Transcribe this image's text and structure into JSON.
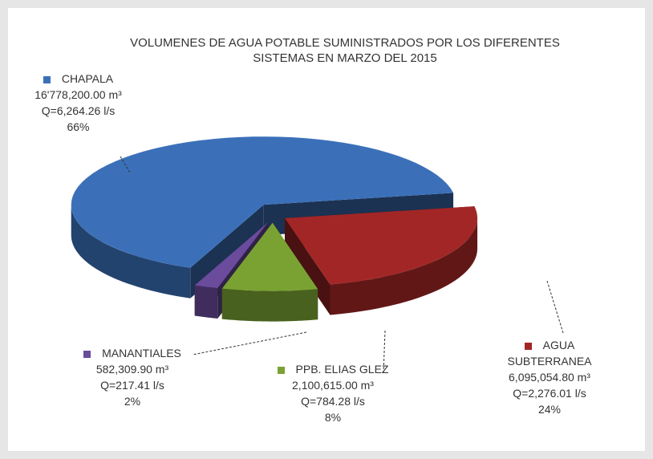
{
  "chart_data": {
    "type": "pie",
    "title": "VOLUMENES DE AGUA POTABLE SUMINISTRADOS POR LOS DIFERENTES SISTEMAS EN MARZO DEL 2015",
    "categories": [
      "AGUA SUBTERRANEA",
      "PPB. ELIAS GLEZ",
      "MANANTIALES",
      "CHAPALA"
    ],
    "values": [
      24,
      8,
      2,
      66
    ],
    "value_labels": [
      "24%",
      "8%",
      "2%",
      "66%"
    ],
    "volumes": [
      "6,095,054.80 m³",
      "2,100,615.00 m³",
      "582,309.90 m³",
      "16'778,200.00 m³"
    ],
    "flows": [
      "Q=2,276.01 l/s",
      "Q=784.28 l/s",
      "Q=217.41 l/s",
      "Q=6,264.26 l/s"
    ],
    "colors": [
      "#a32626",
      "#7aa232",
      "#6a4b9c",
      "#3b70b9"
    ]
  }
}
